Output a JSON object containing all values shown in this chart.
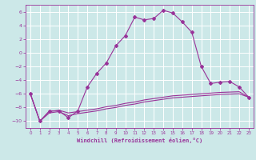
{
  "xlabel": "Windchill (Refroidissement éolien,°C)",
  "bg_color": "#cce8e8",
  "grid_color": "#ffffff",
  "line_color": "#993399",
  "xlim": [
    -0.5,
    23.5
  ],
  "ylim": [
    -11,
    7
  ],
  "xticks": [
    0,
    1,
    2,
    3,
    4,
    5,
    6,
    7,
    8,
    9,
    10,
    11,
    12,
    13,
    14,
    15,
    16,
    17,
    18,
    19,
    20,
    21,
    22,
    23
  ],
  "yticks": [
    -10,
    -8,
    -6,
    -4,
    -2,
    0,
    2,
    4,
    6
  ],
  "series1_x": [
    0,
    1,
    2,
    3,
    4,
    5,
    6,
    7,
    8,
    9,
    10,
    11,
    12,
    13,
    14,
    15,
    16,
    17,
    18,
    19,
    20,
    21,
    22,
    23
  ],
  "series1_y": [
    -6,
    -10,
    -8.5,
    -8.5,
    -9.5,
    -8.5,
    -5.0,
    -3.0,
    -1.5,
    1.0,
    2.5,
    5.2,
    4.8,
    5.0,
    6.2,
    5.8,
    4.5,
    3.0,
    -2.0,
    -4.5,
    -4.3,
    -4.2,
    -5.0,
    -6.5
  ],
  "series2_x": [
    0,
    1,
    2,
    3,
    4,
    5,
    6,
    7,
    8,
    9,
    10,
    11,
    12,
    13,
    14,
    15,
    16,
    17,
    18,
    19,
    20,
    21,
    22,
    23
  ],
  "series2_y": [
    -6.0,
    -10.0,
    -8.8,
    -8.6,
    -9.2,
    -8.9,
    -8.7,
    -8.5,
    -8.2,
    -8.0,
    -7.7,
    -7.5,
    -7.2,
    -7.0,
    -6.8,
    -6.6,
    -6.5,
    -6.4,
    -6.3,
    -6.2,
    -6.1,
    -6.05,
    -6.0,
    -6.5
  ],
  "series3_x": [
    0,
    1,
    2,
    3,
    4,
    5,
    6,
    7,
    8,
    9,
    10,
    11,
    12,
    13,
    14,
    15,
    16,
    17,
    18,
    19,
    20,
    21,
    22,
    23
  ],
  "series3_y": [
    -6.0,
    -10.0,
    -8.6,
    -8.4,
    -8.8,
    -8.6,
    -8.4,
    -8.2,
    -7.9,
    -7.7,
    -7.4,
    -7.2,
    -6.9,
    -6.7,
    -6.5,
    -6.3,
    -6.2,
    -6.1,
    -6.0,
    -5.9,
    -5.8,
    -5.75,
    -5.7,
    -6.5
  ]
}
